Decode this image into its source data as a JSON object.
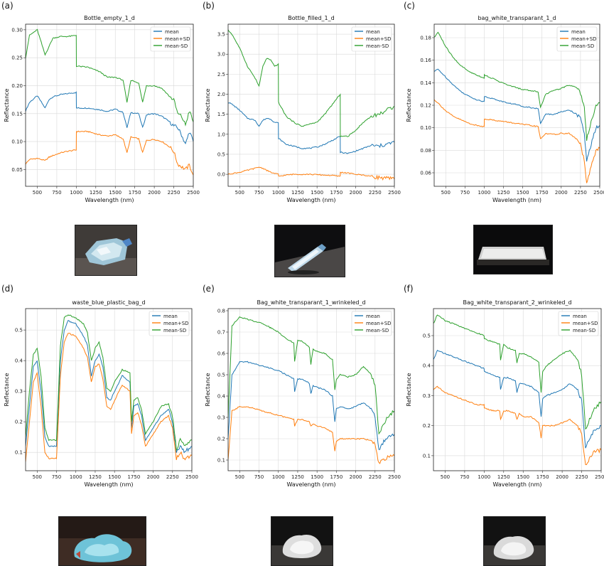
{
  "colors": {
    "mean": "#1f77b4",
    "mean+SD": "#ff7f0e",
    "mean-SD": "#2ca02c",
    "grid": "#d9d9d9"
  },
  "chart_data": [
    {
      "panel_label": "(a)",
      "type": "line",
      "title": "Bottle_empty_1_d",
      "xlabel": "Wavelength (nm)",
      "ylabel": "Reflectance",
      "xlim": [
        350,
        2500
      ],
      "ylim": [
        0.02,
        0.31
      ],
      "xticks": [
        500,
        750,
        1000,
        1250,
        1500,
        1750,
        2000,
        2250,
        2500
      ],
      "yticks": [
        0.05,
        0.1,
        0.15,
        0.2,
        0.25,
        0.3
      ],
      "ytick_labels": [
        "0.05",
        "0.10",
        "0.15",
        "0.20",
        "0.25",
        "0.30"
      ],
      "legend": [
        "mean",
        "mean+SD",
        "mean-SD"
      ],
      "legend_position": "top-right",
      "grid": true,
      "x": [
        350,
        400,
        500,
        600,
        650,
        700,
        800,
        900,
        1000,
        1001,
        1150,
        1300,
        1400,
        1500,
        1600,
        1650,
        1700,
        1800,
        1850,
        1900,
        2000,
        2100,
        2200,
        2250,
        2300,
        2350,
        2400,
        2450,
        2500
      ],
      "series": [
        {
          "name": "mean",
          "values": [
            0.155,
            0.17,
            0.182,
            0.16,
            0.175,
            0.18,
            0.184,
            0.186,
            0.188,
            0.16,
            0.16,
            0.157,
            0.154,
            0.158,
            0.152,
            0.125,
            0.152,
            0.15,
            0.125,
            0.148,
            0.15,
            0.145,
            0.135,
            0.128,
            0.125,
            0.112,
            0.095,
            0.118,
            0.1
          ]
        },
        {
          "name": "mean+SD",
          "values": [
            0.06,
            0.068,
            0.07,
            0.066,
            0.072,
            0.075,
            0.08,
            0.083,
            0.085,
            0.118,
            0.118,
            0.112,
            0.11,
            0.112,
            0.105,
            0.08,
            0.108,
            0.105,
            0.08,
            0.102,
            0.104,
            0.1,
            0.09,
            0.082,
            0.06,
            0.055,
            0.05,
            0.058,
            0.04
          ]
        },
        {
          "name": "mean-SD",
          "values": [
            0.25,
            0.29,
            0.3,
            0.255,
            0.27,
            0.285,
            0.288,
            0.288,
            0.29,
            0.235,
            0.233,
            0.225,
            0.215,
            0.215,
            0.21,
            0.17,
            0.21,
            0.205,
            0.17,
            0.2,
            0.2,
            0.195,
            0.18,
            0.175,
            0.15,
            0.145,
            0.13,
            0.155,
            0.135
          ]
        }
      ]
    },
    {
      "panel_label": "(b)",
      "type": "line",
      "title": "Bottle_filled_1_d",
      "xlabel": "Wavelength (nm)",
      "ylabel": "Reflectance",
      "xlim": [
        350,
        2500
      ],
      "ylim": [
        -0.3,
        3.75
      ],
      "xticks": [
        500,
        750,
        1000,
        1250,
        1500,
        1750,
        2000,
        2250,
        2500
      ],
      "yticks": [
        0.0,
        0.5,
        1.0,
        1.5,
        2.0,
        2.5,
        3.0,
        3.5
      ],
      "ytick_labels": [
        "0.0",
        "0.5",
        "1.0",
        "1.5",
        "2.0",
        "2.5",
        "3.0",
        "3.5"
      ],
      "legend": [
        "mean",
        "mean+SD",
        "mean-SD"
      ],
      "legend_position": "top-right",
      "grid": true,
      "x": [
        350,
        400,
        500,
        600,
        700,
        750,
        800,
        850,
        900,
        950,
        1000,
        1001,
        1100,
        1200,
        1300,
        1400,
        1500,
        1600,
        1700,
        1800,
        1801,
        1900,
        2000,
        2100,
        2200,
        2300,
        2400,
        2500
      ],
      "series": [
        {
          "name": "mean",
          "values": [
            1.8,
            1.75,
            1.6,
            1.4,
            1.35,
            1.2,
            1.35,
            1.4,
            1.38,
            1.3,
            1.28,
            0.9,
            0.75,
            0.7,
            0.65,
            0.65,
            0.68,
            0.75,
            0.85,
            0.95,
            0.55,
            0.52,
            0.58,
            0.65,
            0.72,
            0.7,
            0.75,
            0.8
          ]
        },
        {
          "name": "mean+SD",
          "values": [
            0.0,
            0.02,
            0.05,
            0.1,
            0.15,
            0.18,
            0.15,
            0.1,
            0.05,
            0.02,
            0.0,
            -0.05,
            -0.02,
            0.0,
            0.0,
            0.0,
            -0.01,
            -0.02,
            -0.03,
            -0.05,
            0.05,
            0.03,
            0.0,
            -0.02,
            -0.05,
            -0.08,
            -0.1,
            -0.12
          ]
        },
        {
          "name": "mean-SD",
          "values": [
            3.6,
            3.5,
            3.15,
            2.7,
            2.4,
            2.2,
            2.7,
            2.9,
            2.85,
            2.7,
            2.75,
            1.8,
            1.45,
            1.3,
            1.2,
            1.25,
            1.3,
            1.5,
            1.75,
            2.0,
            0.95,
            0.95,
            1.1,
            1.3,
            1.45,
            1.5,
            1.6,
            1.7
          ]
        }
      ]
    },
    {
      "panel_label": "(c)",
      "type": "line",
      "title": "bag_white_transparant_1_d",
      "xlabel": "Wavelength (nm)",
      "ylabel": "Reflectance",
      "xlim": [
        350,
        2500
      ],
      "ylim": [
        0.048,
        0.192
      ],
      "xticks": [
        500,
        750,
        1000,
        1250,
        1500,
        1750,
        2000,
        2250,
        2500
      ],
      "yticks": [
        0.06,
        0.08,
        0.1,
        0.12,
        0.14,
        0.16,
        0.18
      ],
      "ytick_labels": [
        "0.06",
        "0.08",
        "0.10",
        "0.12",
        "0.14",
        "0.16",
        "0.18"
      ],
      "legend": [
        "mean",
        "mean+SD",
        "mean-SD"
      ],
      "legend_position": "top-right",
      "grid": true,
      "x": [
        350,
        400,
        500,
        600,
        700,
        800,
        900,
        1000,
        1001,
        1100,
        1200,
        1300,
        1400,
        1500,
        1600,
        1700,
        1730,
        1800,
        1900,
        2000,
        2100,
        2200,
        2250,
        2300,
        2330,
        2400,
        2450,
        2500
      ],
      "series": [
        {
          "name": "mean",
          "values": [
            0.15,
            0.152,
            0.145,
            0.138,
            0.132,
            0.128,
            0.125,
            0.123,
            0.128,
            0.126,
            0.124,
            0.122,
            0.121,
            0.119,
            0.118,
            0.117,
            0.104,
            0.112,
            0.112,
            0.114,
            0.116,
            0.112,
            0.108,
            0.095,
            0.07,
            0.088,
            0.1,
            0.102
          ]
        },
        {
          "name": "mean+SD",
          "values": [
            0.125,
            0.122,
            0.115,
            0.11,
            0.107,
            0.104,
            0.102,
            0.101,
            0.108,
            0.107,
            0.106,
            0.105,
            0.104,
            0.103,
            0.102,
            0.101,
            0.09,
            0.095,
            0.094,
            0.095,
            0.095,
            0.09,
            0.085,
            0.07,
            0.05,
            0.068,
            0.08,
            0.082
          ]
        },
        {
          "name": "mean-SD",
          "values": [
            0.18,
            0.185,
            0.172,
            0.162,
            0.155,
            0.15,
            0.147,
            0.144,
            0.147,
            0.144,
            0.141,
            0.138,
            0.136,
            0.134,
            0.133,
            0.132,
            0.118,
            0.13,
            0.133,
            0.135,
            0.138,
            0.136,
            0.131,
            0.118,
            0.09,
            0.108,
            0.12,
            0.122
          ]
        }
      ]
    },
    {
      "panel_label": "(d)",
      "type": "line",
      "title": "waste_blue_plastic_bag_d",
      "xlabel": "Wavelength (nm)",
      "ylabel": "Reflectance",
      "xlim": [
        350,
        2500
      ],
      "ylim": [
        0.04,
        0.57
      ],
      "xticks": [
        500,
        750,
        1000,
        1250,
        1500,
        1750,
        2000,
        2250,
        2500
      ],
      "yticks": [
        0.1,
        0.2,
        0.3,
        0.4,
        0.5
      ],
      "ytick_labels": [
        "0.1",
        "0.2",
        "0.3",
        "0.4",
        "0.5"
      ],
      "legend": [
        "mean",
        "mean+SD",
        "mean-SD"
      ],
      "legend_position": "top-right",
      "grid": true,
      "x": [
        350,
        400,
        450,
        500,
        550,
        600,
        650,
        700,
        750,
        800,
        850,
        900,
        1000,
        1100,
        1150,
        1200,
        1250,
        1300,
        1350,
        1400,
        1450,
        1500,
        1600,
        1700,
        1720,
        1750,
        1800,
        1850,
        1900,
        2000,
        2100,
        2200,
        2250,
        2300,
        2350,
        2400,
        2500
      ],
      "series": [
        {
          "name": "mean",
          "values": [
            0.12,
            0.25,
            0.38,
            0.4,
            0.3,
            0.15,
            0.12,
            0.12,
            0.12,
            0.4,
            0.5,
            0.53,
            0.52,
            0.48,
            0.45,
            0.35,
            0.4,
            0.42,
            0.38,
            0.28,
            0.27,
            0.3,
            0.35,
            0.33,
            0.18,
            0.25,
            0.26,
            0.22,
            0.14,
            0.18,
            0.22,
            0.24,
            0.2,
            0.1,
            0.12,
            0.1,
            0.12
          ]
        },
        {
          "name": "mean+SD",
          "values": [
            0.07,
            0.2,
            0.33,
            0.36,
            0.25,
            0.1,
            0.08,
            0.08,
            0.08,
            0.35,
            0.46,
            0.49,
            0.48,
            0.44,
            0.41,
            0.33,
            0.38,
            0.39,
            0.34,
            0.25,
            0.24,
            0.27,
            0.32,
            0.3,
            0.16,
            0.22,
            0.23,
            0.19,
            0.12,
            0.16,
            0.2,
            0.22,
            0.18,
            0.08,
            0.1,
            0.08,
            0.09
          ]
        },
        {
          "name": "mean-SD",
          "values": [
            0.15,
            0.3,
            0.42,
            0.44,
            0.35,
            0.18,
            0.14,
            0.14,
            0.14,
            0.45,
            0.54,
            0.55,
            0.54,
            0.52,
            0.49,
            0.4,
            0.44,
            0.46,
            0.41,
            0.31,
            0.3,
            0.33,
            0.37,
            0.36,
            0.2,
            0.27,
            0.28,
            0.24,
            0.16,
            0.2,
            0.25,
            0.26,
            0.22,
            0.11,
            0.14,
            0.12,
            0.14
          ]
        }
      ]
    },
    {
      "panel_label": "(e)",
      "type": "line",
      "title": "Bag_white_transparant_1_wrinkeled_d",
      "xlabel": "Wavelength (nm)",
      "ylabel": "Reflectance",
      "xlim": [
        350,
        2500
      ],
      "ylim": [
        0.05,
        0.81
      ],
      "xticks": [
        500,
        750,
        1000,
        1250,
        1500,
        1750,
        2000,
        2250,
        2500
      ],
      "yticks": [
        0.1,
        0.2,
        0.3,
        0.4,
        0.5,
        0.6,
        0.7,
        0.8
      ],
      "ytick_labels": [
        "0.1",
        "0.2",
        "0.3",
        "0.4",
        "0.5",
        "0.6",
        "0.7",
        "0.8"
      ],
      "legend": [
        "mean",
        "mean+SD",
        "mean-SD"
      ],
      "legend_position": "top-right",
      "grid": true,
      "x": [
        350,
        400,
        500,
        600,
        700,
        800,
        900,
        1000,
        1100,
        1200,
        1210,
        1250,
        1300,
        1400,
        1420,
        1450,
        1500,
        1600,
        1700,
        1730,
        1750,
        1800,
        1900,
        2000,
        2100,
        2200,
        2250,
        2300,
        2350,
        2400,
        2500
      ],
      "series": [
        {
          "name": "mean",
          "values": [
            0.2,
            0.5,
            0.56,
            0.56,
            0.55,
            0.54,
            0.53,
            0.52,
            0.5,
            0.48,
            0.42,
            0.48,
            0.48,
            0.46,
            0.41,
            0.45,
            0.44,
            0.43,
            0.4,
            0.28,
            0.34,
            0.35,
            0.34,
            0.35,
            0.37,
            0.34,
            0.3,
            0.15,
            0.18,
            0.2,
            0.22
          ]
        },
        {
          "name": "mean+SD",
          "values": [
            0.1,
            0.33,
            0.35,
            0.35,
            0.34,
            0.33,
            0.32,
            0.31,
            0.3,
            0.29,
            0.26,
            0.29,
            0.29,
            0.28,
            0.26,
            0.27,
            0.26,
            0.25,
            0.23,
            0.14,
            0.19,
            0.2,
            0.2,
            0.2,
            0.2,
            0.19,
            0.17,
            0.08,
            0.1,
            0.11,
            0.12
          ]
        },
        {
          "name": "mean-SD",
          "values": [
            0.3,
            0.73,
            0.77,
            0.76,
            0.75,
            0.74,
            0.72,
            0.7,
            0.67,
            0.65,
            0.56,
            0.66,
            0.66,
            0.63,
            0.55,
            0.62,
            0.61,
            0.6,
            0.57,
            0.43,
            0.48,
            0.5,
            0.49,
            0.5,
            0.54,
            0.5,
            0.45,
            0.22,
            0.26,
            0.3,
            0.33
          ]
        }
      ]
    },
    {
      "panel_label": "(f)",
      "type": "line",
      "title": "Bag_white_transparant_2_wrinkeled_d",
      "xlabel": "Wavelength (nm)",
      "ylabel": "Reflectance",
      "xlim": [
        350,
        2500
      ],
      "ylim": [
        0.05,
        0.59
      ],
      "xticks": [
        500,
        750,
        1000,
        1250,
        1500,
        1750,
        2000,
        2250,
        2500
      ],
      "yticks": [
        0.1,
        0.2,
        0.3,
        0.4,
        0.5
      ],
      "ytick_labels": [
        "0.1",
        "0.2",
        "0.3",
        "0.4",
        "0.5"
      ],
      "legend": [
        "mean",
        "mean+SD",
        "mean-SD"
      ],
      "legend_position": "top-right",
      "grid": true,
      "x": [
        350,
        400,
        500,
        600,
        700,
        800,
        900,
        1000,
        1001,
        1100,
        1200,
        1210,
        1250,
        1300,
        1400,
        1420,
        1450,
        1500,
        1600,
        1700,
        1730,
        1750,
        1800,
        1900,
        2000,
        2100,
        2200,
        2250,
        2300,
        2350,
        2400,
        2500
      ],
      "series": [
        {
          "name": "mean",
          "values": [
            0.42,
            0.45,
            0.44,
            0.43,
            0.42,
            0.41,
            0.4,
            0.39,
            0.38,
            0.37,
            0.36,
            0.32,
            0.36,
            0.36,
            0.35,
            0.31,
            0.34,
            0.34,
            0.33,
            0.31,
            0.23,
            0.29,
            0.3,
            0.31,
            0.32,
            0.34,
            0.32,
            0.28,
            0.13,
            0.16,
            0.18,
            0.2
          ]
        },
        {
          "name": "mean+SD",
          "values": [
            0.32,
            0.33,
            0.31,
            0.3,
            0.29,
            0.28,
            0.27,
            0.27,
            0.26,
            0.25,
            0.25,
            0.22,
            0.25,
            0.25,
            0.24,
            0.22,
            0.24,
            0.23,
            0.23,
            0.21,
            0.16,
            0.2,
            0.2,
            0.2,
            0.21,
            0.22,
            0.2,
            0.17,
            0.07,
            0.09,
            0.11,
            0.12
          ]
        },
        {
          "name": "mean-SD",
          "values": [
            0.54,
            0.57,
            0.55,
            0.54,
            0.53,
            0.52,
            0.51,
            0.5,
            0.49,
            0.48,
            0.47,
            0.42,
            0.47,
            0.46,
            0.45,
            0.41,
            0.44,
            0.44,
            0.43,
            0.41,
            0.31,
            0.38,
            0.4,
            0.42,
            0.44,
            0.45,
            0.42,
            0.37,
            0.19,
            0.22,
            0.25,
            0.28
          ]
        }
      ]
    }
  ]
}
